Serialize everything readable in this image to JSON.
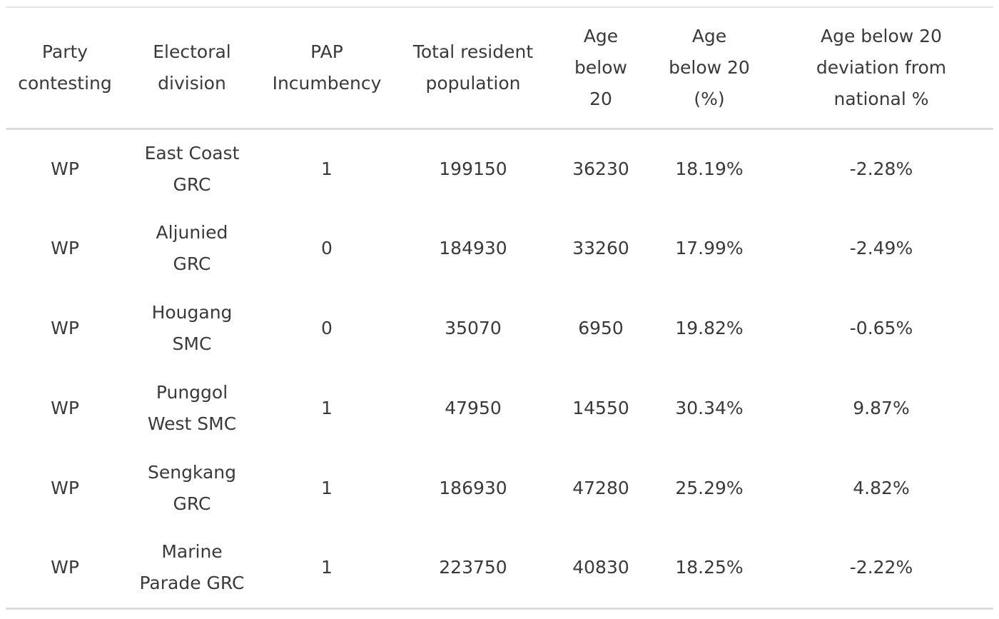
{
  "table": {
    "headers": [
      [
        "Party",
        "contesting"
      ],
      [
        "Electoral",
        "division"
      ],
      [
        "PAP",
        "Incumbency"
      ],
      [
        "Total resident",
        "population"
      ],
      [
        "Age",
        "below",
        "20"
      ],
      [
        "Age",
        "below 20",
        "(%)"
      ],
      [
        "Age below 20",
        "deviation from",
        "national %"
      ]
    ],
    "rows": [
      {
        "party": "WP",
        "division": [
          "East Coast",
          "GRC"
        ],
        "incumbency": "1",
        "population": "199150",
        "below20": "36230",
        "below20_pct": "18.19%",
        "deviation": "-2.28%"
      },
      {
        "party": "WP",
        "division": [
          "Aljunied",
          "GRC"
        ],
        "incumbency": "0",
        "population": "184930",
        "below20": "33260",
        "below20_pct": "17.99%",
        "deviation": "-2.49%"
      },
      {
        "party": "WP",
        "division": [
          "Hougang",
          "SMC"
        ],
        "incumbency": "0",
        "population": "35070",
        "below20": "6950",
        "below20_pct": "19.82%",
        "deviation": "-0.65%"
      },
      {
        "party": "WP",
        "division": [
          "Punggol",
          "West SMC"
        ],
        "incumbency": "1",
        "population": "47950",
        "below20": "14550",
        "below20_pct": "30.34%",
        "deviation": "9.87%"
      },
      {
        "party": "WP",
        "division": [
          "Sengkang",
          "GRC"
        ],
        "incumbency": "1",
        "population": "186930",
        "below20": "47280",
        "below20_pct": "25.29%",
        "deviation": "4.82%"
      },
      {
        "party": "WP",
        "division": [
          "Marine",
          "Parade GRC"
        ],
        "incumbency": "1",
        "population": "223750",
        "below20": "40830",
        "below20_pct": "18.25%",
        "deviation": "-2.22%"
      }
    ]
  }
}
